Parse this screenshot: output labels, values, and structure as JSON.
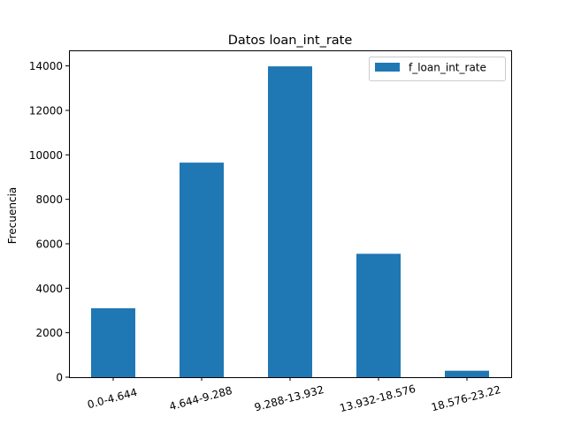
{
  "chart_data": {
    "type": "bar",
    "title": "Datos loan_int_rate",
    "xlabel": "",
    "ylabel": "Frecuencia",
    "categories": [
      "0.0-4.644",
      "4.644-9.288",
      "9.288-13.932",
      "13.932-18.576",
      "18.576-23.22"
    ],
    "series": [
      {
        "name": "f_loan_int_rate",
        "values": [
          3100,
          9650,
          13980,
          5550,
          290
        ],
        "color": "#1f77b4"
      }
    ],
    "ylim": [
      0,
      14700
    ],
    "yticks": [
      0,
      2000,
      4000,
      6000,
      8000,
      10000,
      12000,
      14000
    ],
    "grid": false,
    "legend_position": "top-right"
  }
}
